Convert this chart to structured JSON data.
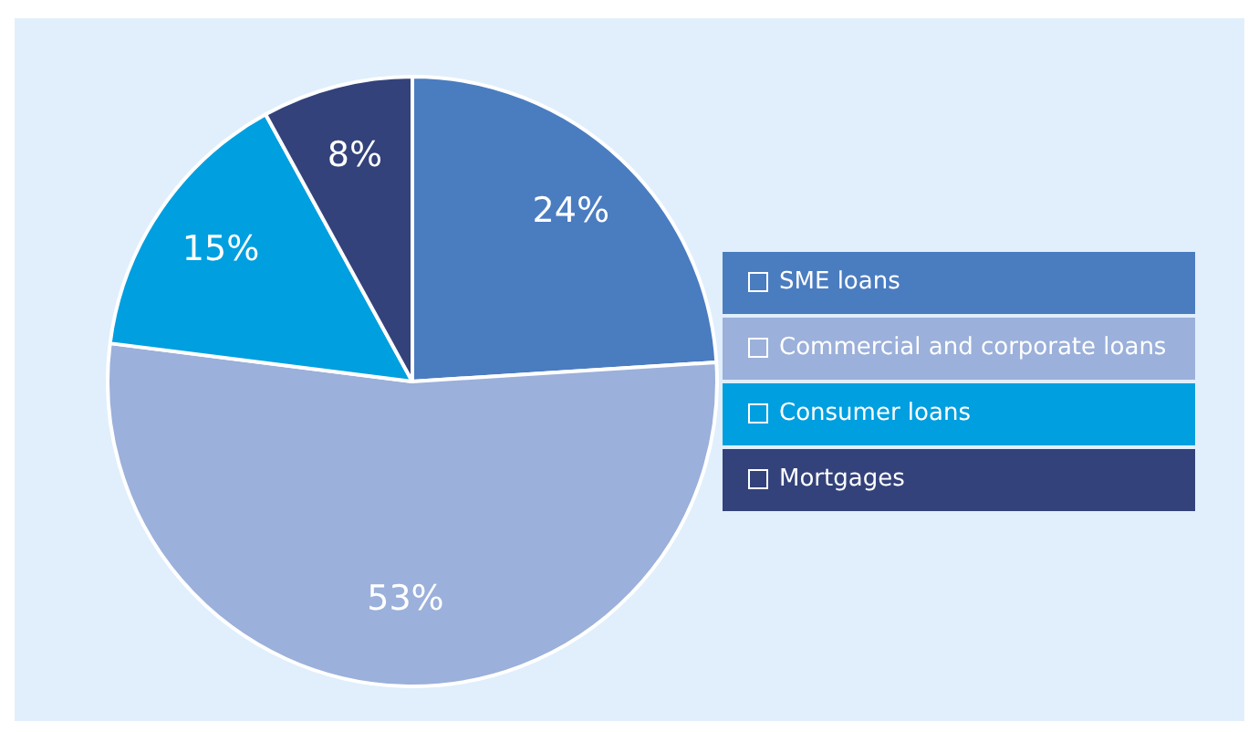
{
  "chart_data": {
    "type": "pie",
    "categories": [
      "SME loans",
      "Commercial and corporate loans",
      "Consumer loans",
      "Mortgages"
    ],
    "values": [
      24,
      53,
      15,
      8
    ],
    "colors": [
      "#4a7cc0",
      "#9bb0da",
      "#009fe0",
      "#33427a"
    ],
    "value_labels": [
      "24%",
      "53%",
      "15%",
      "8%"
    ],
    "legend": "right"
  }
}
